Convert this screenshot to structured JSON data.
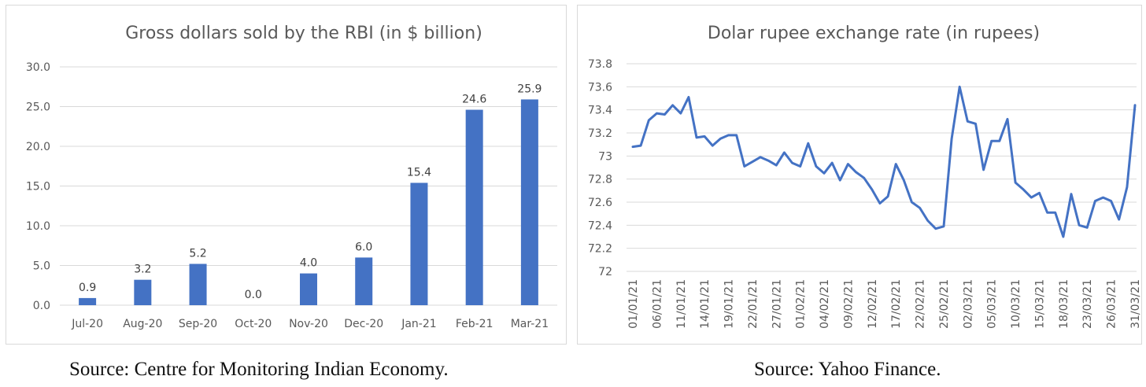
{
  "charts": {
    "left": {
      "source": "Source: Centre for Monitoring Indian Economy."
    },
    "right": {
      "source": "Source: Yahoo Finance."
    }
  },
  "chart_data": [
    {
      "type": "bar",
      "title": "Gross dollars sold by the RBI (in $ billion)",
      "categories": [
        "Jul-20",
        "Aug-20",
        "Sep-20",
        "Oct-20",
        "Nov-20",
        "Dec-20",
        "Jan-21",
        "Feb-21",
        "Mar-21"
      ],
      "values": [
        0.9,
        3.2,
        5.2,
        0.0,
        4.0,
        6.0,
        15.4,
        24.6,
        25.9
      ],
      "data_labels": [
        "0.9",
        "3.2",
        "5.2",
        "0.0",
        "4.0",
        "6.0",
        "15.4",
        "24.6",
        "25.9"
      ],
      "yticks": [
        "0.0",
        "5.0",
        "10.0",
        "15.0",
        "20.0",
        "25.0",
        "30.0"
      ],
      "ylim": [
        0,
        30
      ],
      "color": "#4472c4",
      "grid": true
    },
    {
      "type": "line",
      "title": "Dolar rupee exchange rate (in rupees)",
      "xticks": [
        "01/01/21",
        "06/01/21",
        "11/01/21",
        "14/01/21",
        "19/01/21",
        "22/01/21",
        "27/01/21",
        "01/02/21",
        "04/02/21",
        "09/02/21",
        "12/02/21",
        "17/02/21",
        "22/02/21",
        "25/02/21",
        "02/03/21",
        "05/03/21",
        "10/03/21",
        "15/03/21",
        "18/03/21",
        "23/03/21",
        "26/03/21",
        "31/03/21"
      ],
      "values": [
        73.08,
        73.09,
        73.31,
        73.37,
        73.36,
        73.44,
        73.37,
        73.51,
        73.16,
        73.17,
        73.09,
        73.15,
        73.18,
        73.18,
        72.91,
        72.95,
        72.99,
        72.96,
        72.92,
        73.03,
        72.94,
        72.91,
        73.11,
        72.91,
        72.85,
        72.94,
        72.79,
        72.93,
        72.86,
        72.81,
        72.71,
        72.59,
        72.65,
        72.93,
        72.79,
        72.6,
        72.55,
        72.44,
        72.37,
        72.39,
        73.15,
        73.6,
        73.3,
        73.28,
        72.88,
        73.13,
        73.13,
        73.32,
        72.77,
        72.71,
        72.64,
        72.68,
        72.51,
        72.51,
        72.3,
        72.67,
        72.4,
        72.38,
        72.61,
        72.64,
        72.61,
        72.45,
        72.73,
        73.44
      ],
      "yticks": [
        "72",
        "72.2",
        "72.4",
        "72.6",
        "72.8",
        "73",
        "73.2",
        "73.4",
        "73.6",
        "73.8"
      ],
      "ylim": [
        72,
        73.8
      ],
      "color": "#4472c4",
      "grid": true
    }
  ]
}
